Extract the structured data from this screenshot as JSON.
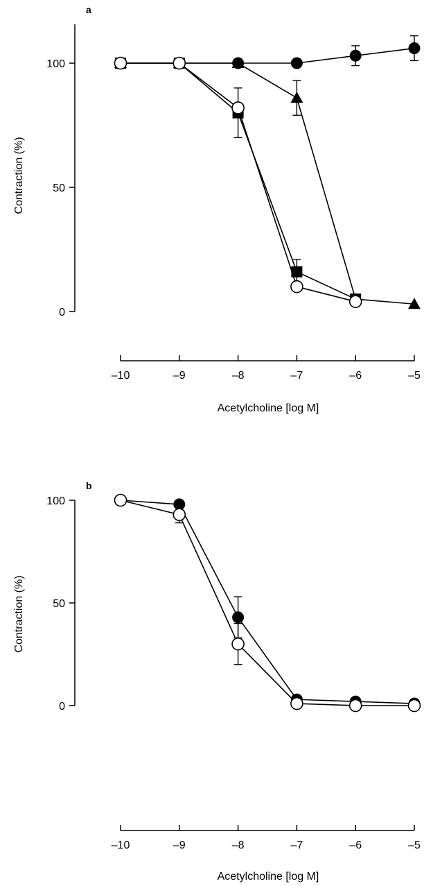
{
  "chart_data": [
    {
      "type": "line",
      "panel_label": "a",
      "xlabel": "Acetylcholine [log M]",
      "ylabel": "Contraction (%)",
      "xlim": [
        -10,
        -5
      ],
      "ylim": [
        0,
        120
      ],
      "x_ticks": [
        -10,
        -9,
        -8,
        -7,
        -6,
        -5
      ],
      "x_tick_labels": [
        "–10",
        "–9",
        "–8",
        "–7",
        "–6",
        "–5"
      ],
      "y_ticks": [
        0,
        50,
        100
      ],
      "y_tick_labels": [
        "0",
        "50",
        "100"
      ],
      "series": [
        {
          "marker": "filled-circle",
          "color": "#000000",
          "points": [
            [
              -10,
              100
            ],
            [
              -9,
              100
            ],
            [
              -8,
              100
            ],
            [
              -7,
              100
            ],
            [
              -6,
              103
            ],
            [
              -5,
              106
            ]
          ],
          "err": [
            0,
            0,
            0,
            0,
            4,
            5
          ]
        },
        {
          "marker": "filled-triangle",
          "color": "#000000",
          "points": [
            [
              -10,
              100
            ],
            [
              -9,
              100
            ],
            [
              -8,
              100
            ],
            [
              -7,
              86
            ],
            [
              -6,
              5
            ],
            [
              -5,
              3
            ]
          ],
          "err": [
            0,
            0,
            0,
            7,
            0,
            0
          ]
        },
        {
          "marker": "filled-square",
          "color": "#000000",
          "points": [
            [
              -10,
              100
            ],
            [
              -9,
              100
            ],
            [
              -8,
              80
            ],
            [
              -7,
              16
            ],
            [
              -6,
              5
            ]
          ],
          "err": [
            0,
            0,
            10,
            5,
            0
          ]
        },
        {
          "marker": "open-circle",
          "color": "#000000",
          "points": [
            [
              -10,
              100
            ],
            [
              -9,
              100
            ],
            [
              -8,
              82
            ],
            [
              -7,
              10
            ],
            [
              -6,
              4
            ]
          ],
          "err": [
            0,
            0,
            0,
            0,
            0
          ]
        }
      ]
    },
    {
      "type": "line",
      "panel_label": "b",
      "xlabel": "Acetylcholine [log M]",
      "ylabel": "Contraction (%)",
      "xlim": [
        -10,
        -5
      ],
      "ylim": [
        0,
        100
      ],
      "x_ticks": [
        -10,
        -9,
        -8,
        -7,
        -6,
        -5
      ],
      "x_tick_labels": [
        "–10",
        "–9",
        "–8",
        "–7",
        "–6",
        "–5"
      ],
      "y_ticks": [
        0,
        50,
        100
      ],
      "y_tick_labels": [
        "0",
        "50",
        "100"
      ],
      "series": [
        {
          "marker": "filled-circle",
          "color": "#000000",
          "points": [
            [
              -10,
              100
            ],
            [
              -9,
              98
            ],
            [
              -8,
              43
            ],
            [
              -7,
              3
            ],
            [
              -6,
              2
            ],
            [
              -5,
              1
            ]
          ],
          "err": [
            0,
            0,
            10,
            0,
            0,
            0
          ]
        },
        {
          "marker": "open-circle",
          "color": "#000000",
          "points": [
            [
              -10,
              100
            ],
            [
              -9,
              93
            ],
            [
              -8,
              30
            ],
            [
              -7,
              1
            ],
            [
              -6,
              0
            ],
            [
              -5,
              0
            ]
          ],
          "err": [
            0,
            4,
            10,
            0,
            0,
            0
          ]
        }
      ]
    }
  ]
}
